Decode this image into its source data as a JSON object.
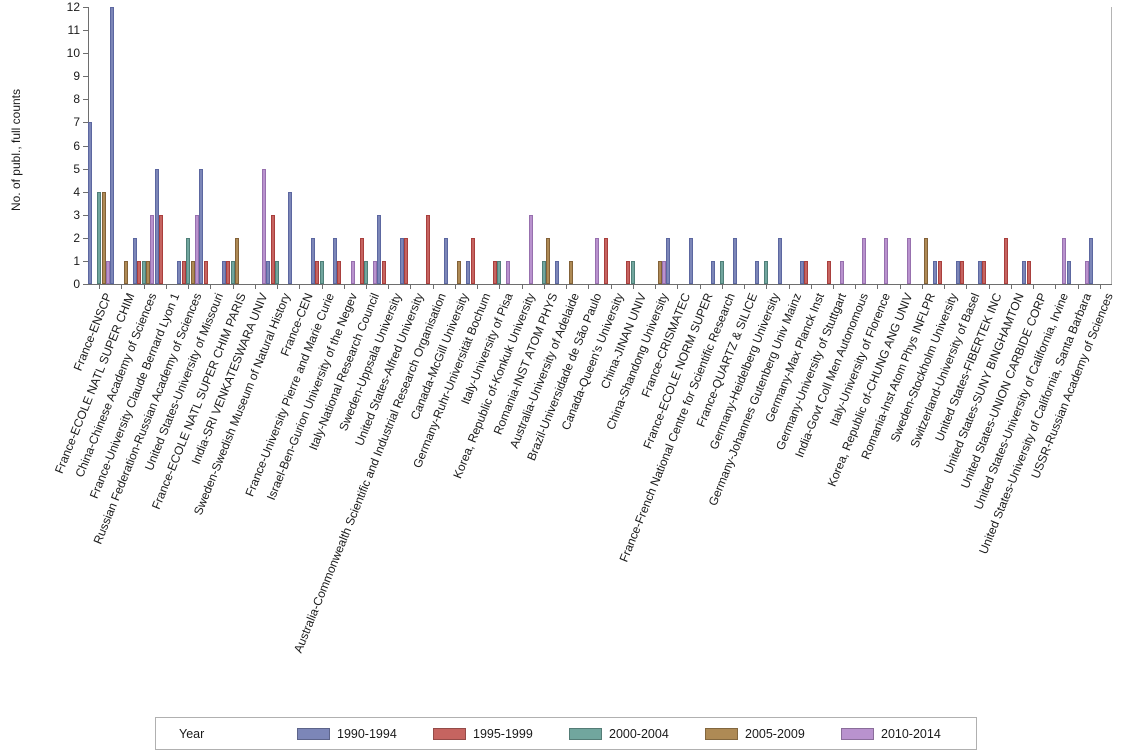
{
  "chart_data": {
    "type": "bar",
    "title": "",
    "xlabel": "",
    "ylabel": "No. of publ., full counts",
    "ylim": [
      0,
      12
    ],
    "yticks": [
      0,
      1,
      2,
      3,
      4,
      5,
      6,
      7,
      8,
      9,
      10,
      11,
      12
    ],
    "grid": "off",
    "legend_position": "bottom",
    "legend_title": "Year",
    "series": [
      {
        "name": "1990-1994",
        "fill": "#7C86B8",
        "border": "#5C67A0"
      },
      {
        "name": "1995-1999",
        "fill": "#C66460",
        "border": "#A93F3D"
      },
      {
        "name": "2000-2004",
        "fill": "#71A69E",
        "border": "#4F7F78"
      },
      {
        "name": "2005-2009",
        "fill": "#AE8A55",
        "border": "#836238"
      },
      {
        "name": "2010-2014",
        "fill": "#B992CE",
        "border": "#9770AE"
      }
    ],
    "categories": [
      {
        "name": "France-ENSCP",
        "values": [
          7,
          0,
          4,
          4,
          1
        ]
      },
      {
        "name": "France-ECOLE NATL SUPER CHIM",
        "values": [
          12,
          0,
          0,
          1,
          0
        ]
      },
      {
        "name": "China-Chinese Academy of Sciences",
        "values": [
          2,
          1,
          1,
          1,
          3
        ]
      },
      {
        "name": "France-University Claude Bernard Lyon 1",
        "values": [
          5,
          3,
          0,
          0,
          0
        ]
      },
      {
        "name": "Russian Federation-Russian Academy of Sciences",
        "values": [
          1,
          1,
          2,
          1,
          3
        ]
      },
      {
        "name": "United States-University of Missouri",
        "values": [
          5,
          1,
          0,
          0,
          0
        ]
      },
      {
        "name": "France-ECOLE NATL SUPER CHIM PARIS",
        "values": [
          1,
          1,
          1,
          2,
          0
        ]
      },
      {
        "name": "India-SRI VENKATESWARA UNIV",
        "values": [
          0,
          0,
          0,
          0,
          5
        ]
      },
      {
        "name": "Sweden-Swedish Museum of Natural History",
        "values": [
          1,
          3,
          1,
          0,
          0
        ]
      },
      {
        "name": "France-CEN",
        "values": [
          4,
          0,
          0,
          0,
          0
        ]
      },
      {
        "name": "France-University Pierre and Marie Curie",
        "values": [
          2,
          1,
          1,
          0,
          0
        ]
      },
      {
        "name": "Israel-Ben-Gurion University of the Negev",
        "values": [
          2,
          1,
          0,
          0,
          1
        ]
      },
      {
        "name": "Italy-National Research Council",
        "values": [
          0,
          2,
          1,
          0,
          1
        ]
      },
      {
        "name": "Sweden-Uppsala University",
        "values": [
          3,
          1,
          0,
          0,
          0
        ]
      },
      {
        "name": "United States-Alfred University",
        "values": [
          2,
          2,
          0,
          0,
          0
        ]
      },
      {
        "name": "Australia-Commonwealth Scientific and Industrial Research Organisation",
        "values": [
          0,
          3,
          0,
          0,
          0
        ]
      },
      {
        "name": "Canada-McGill University",
        "values": [
          2,
          0,
          0,
          1,
          0
        ]
      },
      {
        "name": "Germany-Ruhr-Universität Bochum",
        "values": [
          1,
          2,
          0,
          0,
          0
        ]
      },
      {
        "name": "Italy-University of Pisa",
        "values": [
          0,
          1,
          1,
          0,
          1
        ]
      },
      {
        "name": "Korea, Republic of-Konkuk University",
        "values": [
          0,
          0,
          0,
          0,
          3
        ]
      },
      {
        "name": "Romania-INST ATOM PHYS",
        "values": [
          0,
          0,
          1,
          2,
          0
        ]
      },
      {
        "name": "Australia-University of Adelaide",
        "values": [
          1,
          0,
          0,
          1,
          0
        ]
      },
      {
        "name": "Brazil-Universidade de São Paulo",
        "values": [
          0,
          0,
          0,
          0,
          2
        ]
      },
      {
        "name": "Canada-Queen's University",
        "values": [
          0,
          2,
          0,
          0,
          0
        ]
      },
      {
        "name": "China-JINAN UNIV",
        "values": [
          0,
          1,
          1,
          0,
          0
        ]
      },
      {
        "name": "China-Shandong University",
        "values": [
          0,
          0,
          0,
          1,
          1
        ]
      },
      {
        "name": "France-CRISMATEC",
        "values": [
          2,
          0,
          0,
          0,
          0
        ]
      },
      {
        "name": "France-ECOLE NORM SUPER",
        "values": [
          2,
          0,
          0,
          0,
          0
        ]
      },
      {
        "name": "France-French National Centre for Scientific Research",
        "values": [
          1,
          0,
          1,
          0,
          0
        ]
      },
      {
        "name": "France-QUARTZ & SILICE",
        "values": [
          2,
          0,
          0,
          0,
          0
        ]
      },
      {
        "name": "Germany-Heidelberg University",
        "values": [
          1,
          0,
          1,
          0,
          0
        ]
      },
      {
        "name": "Germany-Johannes Gutenberg Univ Mainz",
        "values": [
          2,
          0,
          0,
          0,
          0
        ]
      },
      {
        "name": "Germany-Max Planck Inst",
        "values": [
          1,
          1,
          0,
          0,
          0
        ]
      },
      {
        "name": "Germany-University of Stuttgart",
        "values": [
          0,
          1,
          0,
          0,
          1
        ]
      },
      {
        "name": "India-Govt Coll Men Autonomous",
        "values": [
          0,
          0,
          0,
          0,
          2
        ]
      },
      {
        "name": "Italy-University of Florence",
        "values": [
          0,
          0,
          0,
          0,
          2
        ]
      },
      {
        "name": "Korea, Republic of-CHUNG ANG UNIV",
        "values": [
          0,
          0,
          0,
          0,
          2
        ]
      },
      {
        "name": "Romania-Inst Atom Phys INFLPR",
        "values": [
          0,
          0,
          0,
          2,
          0
        ]
      },
      {
        "name": "Sweden-Stockholm University",
        "values": [
          1,
          1,
          0,
          0,
          0
        ]
      },
      {
        "name": "Switzerland-University of Basel",
        "values": [
          1,
          1,
          0,
          0,
          0
        ]
      },
      {
        "name": "United States-FIBERTEK INC",
        "values": [
          1,
          1,
          0,
          0,
          0
        ]
      },
      {
        "name": "United States-SUNY BINGHAMTON",
        "values": [
          0,
          2,
          0,
          0,
          0
        ]
      },
      {
        "name": "United States-UNION CARBIDE CORP",
        "values": [
          1,
          1,
          0,
          0,
          0
        ]
      },
      {
        "name": "United States-University of California, Irvine",
        "values": [
          0,
          0,
          0,
          0,
          2
        ]
      },
      {
        "name": "United States-University of California, Santa Barbara",
        "values": [
          1,
          0,
          0,
          0,
          1
        ]
      },
      {
        "name": "USSR-Russian Academy of Sciences",
        "values": [
          2,
          0,
          0,
          0,
          0
        ]
      }
    ]
  }
}
